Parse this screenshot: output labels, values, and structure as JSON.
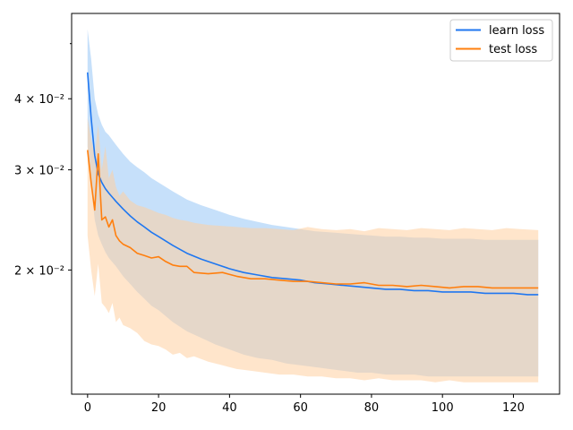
{
  "chart_data": {
    "type": "line",
    "title": "",
    "xlabel": "",
    "ylabel": "",
    "xlim": [
      -4.5,
      133
    ],
    "ylim": [
      0.0121,
      0.0565
    ],
    "yscale": "log",
    "x_ticks": [
      0,
      20,
      40,
      60,
      80,
      100,
      120
    ],
    "y_ticks": [
      {
        "value": 0.02,
        "label": "2 × 10⁻²"
      },
      {
        "value": 0.03,
        "label": "3 × 10⁻²"
      },
      {
        "value": 0.04,
        "label": "4 × 10⁻²"
      }
    ],
    "y_minor_ticks": [
      0.05
    ],
    "grid": false,
    "legend": {
      "position": "top-right"
    },
    "series": [
      {
        "name": "learn loss",
        "color": "#1f77f0",
        "band_color": "#a8d0f8",
        "x": [
          0,
          1,
          2,
          3,
          4,
          5,
          6,
          8,
          10,
          12,
          14,
          16,
          18,
          20,
          24,
          28,
          32,
          36,
          40,
          44,
          48,
          52,
          56,
          60,
          64,
          68,
          72,
          76,
          80,
          84,
          88,
          92,
          96,
          100,
          104,
          108,
          112,
          116,
          120,
          124,
          127
        ],
        "y": [
          0.0445,
          0.037,
          0.0318,
          0.0295,
          0.0285,
          0.0278,
          0.0273,
          0.0264,
          0.0256,
          0.0249,
          0.0243,
          0.0238,
          0.0233,
          0.0229,
          0.0221,
          0.0214,
          0.0209,
          0.0205,
          0.0201,
          0.0198,
          0.0196,
          0.0194,
          0.0193,
          0.0192,
          0.019,
          0.0189,
          0.0188,
          0.0187,
          0.0186,
          0.0185,
          0.0185,
          0.0184,
          0.0184,
          0.0183,
          0.0183,
          0.0183,
          0.0182,
          0.0182,
          0.0182,
          0.0181,
          0.0181
        ],
        "upper": [
          0.053,
          0.047,
          0.04,
          0.0375,
          0.036,
          0.035,
          0.0345,
          0.0332,
          0.032,
          0.031,
          0.0303,
          0.0297,
          0.029,
          0.0285,
          0.0275,
          0.0266,
          0.026,
          0.0255,
          0.025,
          0.0246,
          0.0243,
          0.024,
          0.0238,
          0.0236,
          0.0234,
          0.0233,
          0.0232,
          0.0231,
          0.023,
          0.0229,
          0.0229,
          0.0228,
          0.0228,
          0.0227,
          0.0227,
          0.0227,
          0.0226,
          0.0226,
          0.0226,
          0.0226,
          0.0226
        ],
        "lower": [
          0.033,
          0.028,
          0.0245,
          0.023,
          0.0222,
          0.0215,
          0.021,
          0.0203,
          0.0195,
          0.0189,
          0.0183,
          0.0178,
          0.0173,
          0.017,
          0.0162,
          0.0156,
          0.0152,
          0.0148,
          0.0145,
          0.0142,
          0.014,
          0.0139,
          0.0137,
          0.0136,
          0.0135,
          0.0134,
          0.0133,
          0.0132,
          0.0132,
          0.0131,
          0.0131,
          0.0131,
          0.013,
          0.013,
          0.013,
          0.013,
          0.013,
          0.013,
          0.013,
          0.013,
          0.013
        ]
      },
      {
        "name": "test loss",
        "color": "#ff7f0e",
        "band_color": "#ffcfa0",
        "x": [
          0,
          1,
          2,
          3,
          4,
          5,
          6,
          7,
          8,
          9,
          10,
          12,
          14,
          16,
          18,
          20,
          22,
          24,
          26,
          28,
          30,
          34,
          38,
          42,
          46,
          50,
          54,
          58,
          62,
          66,
          70,
          74,
          78,
          82,
          86,
          90,
          94,
          98,
          102,
          106,
          110,
          114,
          118,
          122,
          127
        ],
        "y": [
          0.0325,
          0.0285,
          0.0255,
          0.032,
          0.0245,
          0.0248,
          0.0238,
          0.0245,
          0.023,
          0.0225,
          0.0222,
          0.0219,
          0.0214,
          0.0212,
          0.021,
          0.0211,
          0.0207,
          0.0204,
          0.0203,
          0.0203,
          0.0198,
          0.0197,
          0.0198,
          0.0195,
          0.0193,
          0.0193,
          0.0192,
          0.0191,
          0.0191,
          0.019,
          0.0189,
          0.0189,
          0.019,
          0.0188,
          0.0188,
          0.0187,
          0.0188,
          0.0187,
          0.0186,
          0.0187,
          0.0187,
          0.0186,
          0.0186,
          0.0186,
          0.0186
        ],
        "upper": [
          0.037,
          0.034,
          0.032,
          0.036,
          0.03,
          0.033,
          0.029,
          0.03,
          0.028,
          0.027,
          0.0275,
          0.0265,
          0.026,
          0.0258,
          0.0255,
          0.0252,
          0.025,
          0.0247,
          0.0245,
          0.0244,
          0.0242,
          0.024,
          0.0239,
          0.0238,
          0.0237,
          0.0237,
          0.0236,
          0.0235,
          0.0238,
          0.0236,
          0.0235,
          0.0236,
          0.0234,
          0.0237,
          0.0236,
          0.0235,
          0.0237,
          0.0236,
          0.0235,
          0.0237,
          0.0236,
          0.0235,
          0.0237,
          0.0236,
          0.0235
        ],
        "lower": [
          0.023,
          0.02,
          0.018,
          0.0205,
          0.0175,
          0.0172,
          0.0168,
          0.0175,
          0.0162,
          0.0165,
          0.016,
          0.0158,
          0.0155,
          0.015,
          0.0148,
          0.0147,
          0.0145,
          0.0142,
          0.0143,
          0.014,
          0.0141,
          0.0138,
          0.0136,
          0.0134,
          0.0133,
          0.0132,
          0.0131,
          0.0131,
          0.013,
          0.013,
          0.0129,
          0.0129,
          0.0128,
          0.0129,
          0.0128,
          0.0128,
          0.0128,
          0.0127,
          0.0128,
          0.0127,
          0.0127,
          0.0127,
          0.0127,
          0.0127,
          0.0127
        ]
      }
    ],
    "overlap_color": "#d5cac3"
  }
}
